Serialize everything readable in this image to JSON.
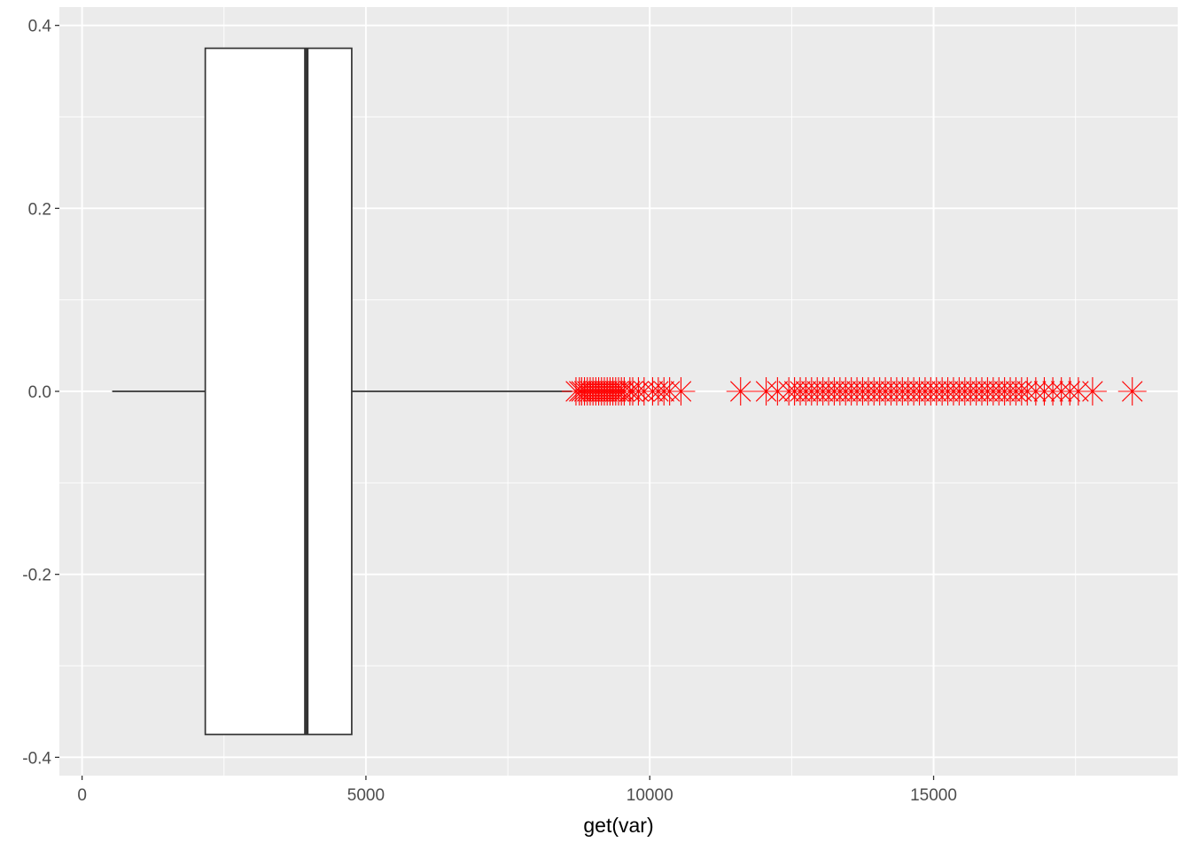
{
  "chart_data": {
    "type": "boxplot",
    "xlabel": "get(var)",
    "ylabel": "",
    "xlim": [
      -400,
      19300
    ],
    "ylim": [
      -0.42,
      0.42
    ],
    "x_ticks": [
      0,
      5000,
      10000,
      15000
    ],
    "x_tick_labels": [
      "0",
      "5000",
      "10000",
      "15000"
    ],
    "y_ticks": [
      0.4,
      0.2,
      0.0,
      -0.2,
      -0.4
    ],
    "y_tick_labels": [
      "0.4",
      "0.2",
      "0.0",
      "-0.2",
      "-0.4"
    ],
    "grid": true,
    "box": {
      "y_center": 0,
      "y_min": -0.375,
      "y_max": 0.375,
      "whisker_low": 530,
      "q1": 2170,
      "median": 3950,
      "q3": 4750,
      "whisker_high": 8630,
      "outliers_y": 0,
      "outliers": [
        8700,
        8760,
        8800,
        8850,
        8900,
        8950,
        9000,
        9050,
        9100,
        9150,
        9200,
        9250,
        9300,
        9350,
        9400,
        9450,
        9500,
        9550,
        9650,
        9700,
        9800,
        9900,
        10050,
        10150,
        10250,
        10350,
        10550,
        11600,
        12050,
        12250,
        12450,
        12550,
        12650,
        12750,
        12850,
        12950,
        13050,
        13150,
        13250,
        13350,
        13450,
        13550,
        13650,
        13750,
        13850,
        13950,
        14050,
        14150,
        14250,
        14350,
        14450,
        14550,
        14650,
        14750,
        14850,
        14950,
        15050,
        15150,
        15250,
        15350,
        15450,
        15550,
        15650,
        15750,
        15850,
        15950,
        16050,
        16150,
        16250,
        16350,
        16450,
        16550,
        16650,
        16800,
        16950,
        17100,
        17250,
        17400,
        17550,
        17800,
        18500
      ]
    },
    "colors": {
      "panel": "#ebebeb",
      "grid": "#ffffff",
      "box_fill": "#ffffff",
      "box_line": "#333333",
      "outlier": "#ff0000"
    }
  }
}
